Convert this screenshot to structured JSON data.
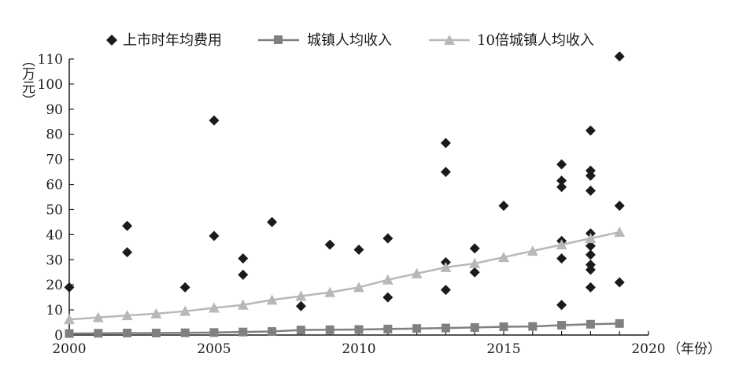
{
  "chart_data": {
    "type": "scatter",
    "xlabel": "（年份）",
    "ylabel": "（万元）",
    "xlim": [
      2000,
      2020
    ],
    "ylim": [
      0,
      110
    ],
    "xticks": [
      "2000",
      "2005",
      "2010",
      "2015",
      "2020"
    ],
    "yticks": [
      "0",
      "10",
      "20",
      "30",
      "40",
      "50",
      "60",
      "70",
      "80",
      "90",
      "100",
      "110"
    ],
    "legend_position": "top",
    "series": [
      {
        "name": "上市时年均费用",
        "kind": "scatter",
        "marker": "diamond",
        "color": "#1a1a1a",
        "points": [
          [
            2000,
            19
          ],
          [
            2002,
            43.5
          ],
          [
            2002,
            33
          ],
          [
            2004,
            19
          ],
          [
            2005,
            85.5
          ],
          [
            2005,
            39.5
          ],
          [
            2006,
            30.5
          ],
          [
            2006,
            24
          ],
          [
            2007,
            45
          ],
          [
            2008,
            11.5
          ],
          [
            2009,
            36
          ],
          [
            2010,
            34
          ],
          [
            2011,
            38.5
          ],
          [
            2011,
            15
          ],
          [
            2013,
            76.5
          ],
          [
            2013,
            65
          ],
          [
            2013,
            29
          ],
          [
            2013,
            18
          ],
          [
            2014,
            34.5
          ],
          [
            2014,
            25
          ],
          [
            2015,
            51.5
          ],
          [
            2017,
            68
          ],
          [
            2017,
            61.5
          ],
          [
            2017,
            59
          ],
          [
            2017,
            37.5
          ],
          [
            2017,
            30.5
          ],
          [
            2017,
            12
          ],
          [
            2018,
            81.5
          ],
          [
            2018,
            65.5
          ],
          [
            2018,
            63.5
          ],
          [
            2018,
            57.5
          ],
          [
            2018,
            40.5
          ],
          [
            2018,
            35.5
          ],
          [
            2018,
            32
          ],
          [
            2018,
            28
          ],
          [
            2018,
            26
          ],
          [
            2018,
            19
          ],
          [
            2019,
            111
          ],
          [
            2019,
            51.5
          ],
          [
            2019,
            21
          ]
        ]
      },
      {
        "name": "城镇人均收入",
        "kind": "line",
        "marker": "square",
        "color": "#808080",
        "x": [
          2000,
          2001,
          2002,
          2003,
          2004,
          2005,
          2006,
          2007,
          2008,
          2009,
          2010,
          2011,
          2012,
          2013,
          2014,
          2015,
          2016,
          2017,
          2018,
          2019
        ],
        "values": [
          0.6,
          0.7,
          0.8,
          0.8,
          0.9,
          1.0,
          1.2,
          1.4,
          2.0,
          2.1,
          2.2,
          2.4,
          2.6,
          2.8,
          3.0,
          3.3,
          3.4,
          3.9,
          4.3,
          4.6
        ]
      },
      {
        "name": "10倍城镇人均收入",
        "kind": "line",
        "marker": "triangle",
        "color": "#b8b8b8",
        "x": [
          2000,
          2001,
          2002,
          2003,
          2004,
          2005,
          2006,
          2007,
          2008,
          2009,
          2010,
          2011,
          2012,
          2013,
          2014,
          2015,
          2016,
          2017,
          2018,
          2019
        ],
        "values": [
          6.2,
          7.0,
          7.8,
          8.5,
          9.5,
          10.8,
          12.0,
          14.0,
          15.5,
          17.0,
          19.0,
          22.0,
          24.5,
          27.0,
          28.5,
          31.0,
          33.5,
          36.0,
          38.5,
          41.0
        ]
      }
    ]
  }
}
